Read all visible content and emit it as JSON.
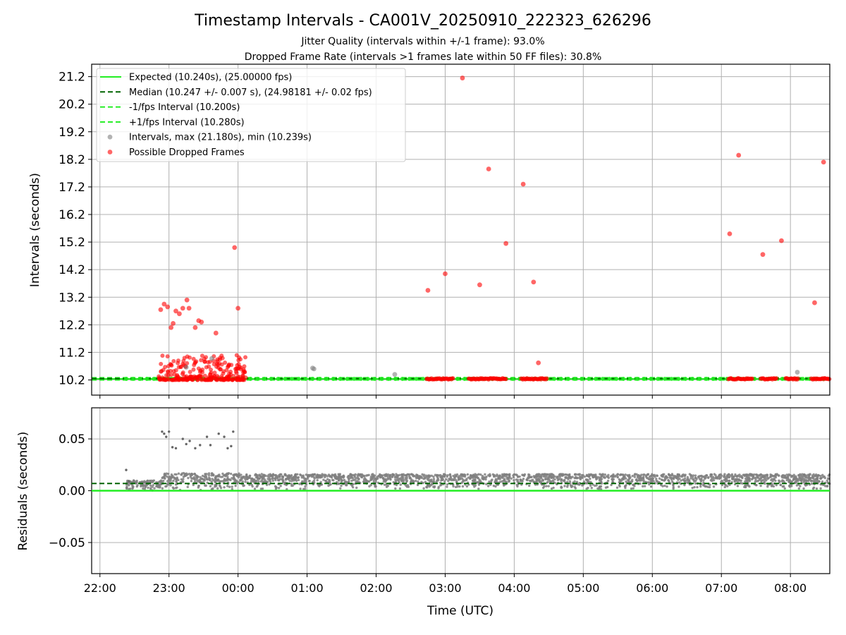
{
  "figure": {
    "title": "Timestamp Intervals - CA001V_20250910_222323_626296",
    "subtitle_jitter": "Jitter Quality (intervals within +/-1 frame): 93.0%",
    "subtitle_dropped": "Dropped Frame Rate (intervals >1 frames late within 50 FF files): 30.8%",
    "xlabel": "Time (UTC)"
  },
  "chart_data": [
    {
      "type": "scatter",
      "panel": "intervals",
      "ylabel": "Intervals (seconds)",
      "x_ticks": [
        "22:00",
        "23:00",
        "00:00",
        "01:00",
        "02:00",
        "03:00",
        "04:00",
        "05:00",
        "06:00",
        "07:00",
        "08:00"
      ],
      "y_ticks": [
        "10.2",
        "11.2",
        "12.2",
        "13.2",
        "14.2",
        "15.2",
        "16.2",
        "17.2",
        "18.2",
        "19.2",
        "20.2",
        "21.2"
      ],
      "xlim_hours": [
        -0.12,
        10.57
      ],
      "ylim": [
        9.65,
        21.65
      ],
      "grid": true,
      "legend_position": "top-left",
      "legend": [
        {
          "label": "Expected (10.240s), (25.00000 fps)",
          "style": "solid",
          "color": "#22ee22"
        },
        {
          "label": "Median (10.247 +/- 0.007 s), (24.98181 +/- 0.02 fps)",
          "style": "dashed",
          "color": "#006400"
        },
        {
          "label": "-1/fps Interval (10.200s)",
          "style": "dashed",
          "color": "#22ee22"
        },
        {
          "label": "+1/fps Interval (10.280s)",
          "style": "dashed",
          "color": "#22ee22"
        },
        {
          "label": "Intervals, max (21.180s), min (10.239s)",
          "style": "marker",
          "color": "#808080"
        },
        {
          "label": "Possible Dropped Frames",
          "style": "marker",
          "color": "#ff0000"
        }
      ],
      "reference_lines": {
        "expected": 10.24,
        "median": 10.247,
        "minus_one_frame": 10.2,
        "plus_one_frame": 10.28
      },
      "gray_points": [
        [
          1.25,
          10.66
        ],
        [
          1.62,
          10.98
        ],
        [
          3.08,
          10.63
        ],
        [
          3.1,
          10.6
        ],
        [
          4.27,
          10.4
        ],
        [
          10.1,
          10.48
        ]
      ],
      "red_points": [
        [
          0.88,
          12.75
        ],
        [
          0.93,
          12.95
        ],
        [
          0.98,
          12.85
        ],
        [
          1.03,
          12.1
        ],
        [
          1.06,
          12.25
        ],
        [
          1.1,
          12.7
        ],
        [
          1.15,
          12.6
        ],
        [
          1.2,
          12.8
        ],
        [
          1.26,
          13.1
        ],
        [
          1.29,
          12.8
        ],
        [
          1.38,
          12.1
        ],
        [
          1.43,
          12.35
        ],
        [
          1.47,
          12.3
        ],
        [
          1.68,
          11.9
        ],
        [
          1.95,
          15.0
        ],
        [
          2.0,
          12.8
        ],
        [
          4.75,
          13.45
        ],
        [
          5.0,
          14.05
        ],
        [
          5.25,
          21.15
        ],
        [
          5.5,
          13.65
        ],
        [
          5.63,
          17.85
        ],
        [
          5.88,
          15.15
        ],
        [
          6.13,
          17.3
        ],
        [
          6.28,
          13.75
        ],
        [
          6.35,
          10.82
        ],
        [
          9.12,
          15.5
        ],
        [
          9.25,
          18.35
        ],
        [
          9.6,
          14.75
        ],
        [
          9.87,
          15.25
        ],
        [
          10.35,
          13.0
        ],
        [
          10.48,
          18.1
        ]
      ],
      "red_cluster": {
        "x_start": 0.85,
        "x_end": 2.12,
        "y_min": 10.2,
        "y_max": 11.1,
        "count": 260
      },
      "red_bands": [
        [
          4.73,
          5.12
        ],
        [
          5.34,
          5.88
        ],
        [
          6.1,
          6.48
        ],
        [
          9.1,
          9.45
        ],
        [
          9.57,
          9.8
        ],
        [
          9.93,
          10.12
        ],
        [
          10.3,
          10.57
        ]
      ],
      "expected_markers": {
        "x_start": 0.38,
        "x_end": 10.57,
        "y": 10.24
      }
    },
    {
      "type": "scatter",
      "panel": "residuals",
      "ylabel": "Residuals (seconds)",
      "y_ticks": [
        "−0.05",
        "0.00",
        "0.05"
      ],
      "ylim": [
        -0.08,
        0.08
      ],
      "grid": true,
      "reference_lines": {
        "expected": 0.0,
        "median": 0.007
      },
      "scatter_points": [
        [
          0.38,
          0.02
        ],
        [
          0.42,
          0.009
        ],
        [
          0.9,
          0.057
        ],
        [
          0.93,
          0.055
        ],
        [
          0.96,
          0.052
        ],
        [
          1.0,
          0.057
        ],
        [
          1.05,
          0.042
        ],
        [
          1.1,
          0.041
        ],
        [
          1.2,
          0.05
        ],
        [
          1.25,
          0.045
        ],
        [
          1.3,
          0.048
        ],
        [
          1.38,
          0.041
        ],
        [
          1.45,
          0.044
        ],
        [
          1.55,
          0.052
        ],
        [
          1.6,
          0.044
        ],
        [
          1.72,
          0.055
        ],
        [
          1.8,
          0.052
        ],
        [
          1.85,
          0.041
        ],
        [
          1.9,
          0.043
        ],
        [
          1.93,
          0.057
        ],
        [
          1.3,
          0.079
        ]
      ],
      "band_segments": [
        {
          "x_start": 0.38,
          "x_end": 0.9,
          "y_min": 0.0,
          "y_max": 0.01
        },
        {
          "x_start": 0.9,
          "x_end": 2.05,
          "y_min": 0.0,
          "y_max": 0.017
        },
        {
          "x_start": 2.05,
          "x_end": 10.57,
          "y_min": 0.001,
          "y_max": 0.016
        }
      ]
    }
  ]
}
